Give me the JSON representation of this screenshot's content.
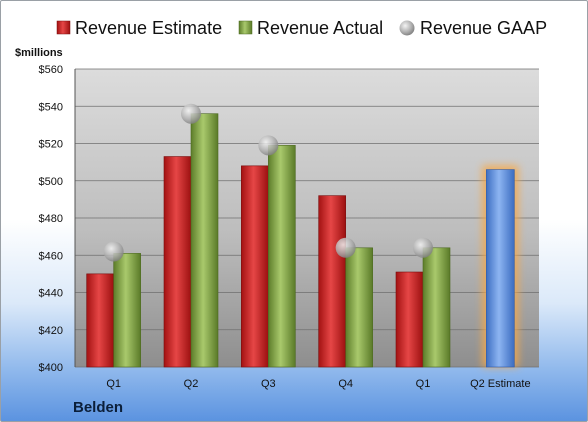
{
  "company": "Belden",
  "colors": {
    "estimate": "#d42a2a",
    "actual": "#8cad4f",
    "gaap": "#b8b8b8",
    "future_estimate": "#6f9ee6",
    "future_glow": "#f6a94a"
  },
  "chart_data": {
    "type": "bar",
    "unit_label": "$millions",
    "categories": [
      "Q1",
      "Q2",
      "Q3",
      "Q4",
      "Q1",
      "Q2 Estimate"
    ],
    "ylim": [
      400,
      560
    ],
    "yticks": [
      400,
      420,
      440,
      460,
      480,
      500,
      520,
      540,
      560
    ],
    "tick_prefix": "$",
    "grid": true,
    "legend_position": "top",
    "series": [
      {
        "name": "Revenue Estimate",
        "kind": "bar",
        "values": [
          450,
          513,
          508,
          492,
          451,
          null
        ]
      },
      {
        "name": "Revenue Actual",
        "kind": "bar",
        "values": [
          461,
          536,
          519,
          464,
          464,
          null
        ]
      },
      {
        "name": "Revenue GAAP",
        "kind": "marker",
        "values": [
          462,
          536,
          519,
          464,
          464,
          null
        ]
      }
    ],
    "future_estimate": {
      "category_index": 5,
      "value": 506
    }
  }
}
